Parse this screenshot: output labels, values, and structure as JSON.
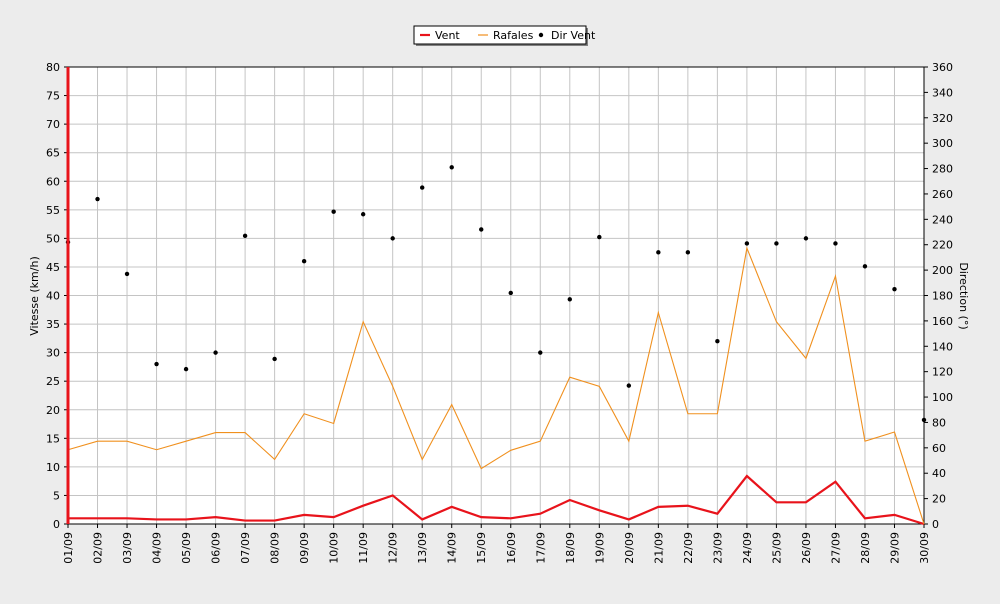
{
  "chart_data": {
    "type": "line",
    "title": "",
    "categories": [
      "01/09",
      "02/09",
      "03/09",
      "04/09",
      "05/09",
      "06/09",
      "07/09",
      "08/09",
      "09/09",
      "10/09",
      "11/09",
      "12/09",
      "13/09",
      "14/09",
      "15/09",
      "16/09",
      "17/09",
      "18/09",
      "19/09",
      "20/09",
      "21/09",
      "22/09",
      "23/09",
      "24/09",
      "25/09",
      "26/09",
      "27/09",
      "28/09",
      "29/09",
      "30/09"
    ],
    "y_left": {
      "label": "Vitesse (km/h)",
      "min": 0,
      "max": 80,
      "step": 5
    },
    "y_right": {
      "label": "Direction (°)",
      "min": 0,
      "max": 360,
      "step": 20
    },
    "grid": true,
    "legend_position": "top-center",
    "series": [
      {
        "name": "Vent",
        "axis": "left",
        "kind": "line",
        "color": "#e8131b",
        "values": [
          1.0,
          1.0,
          1.0,
          0.8,
          0.8,
          1.2,
          0.6,
          0.6,
          1.6,
          1.2,
          3.2,
          5.0,
          0.8,
          3.0,
          1.2,
          1.0,
          1.8,
          4.2,
          2.4,
          0.8,
          3.0,
          3.2,
          1.8,
          8.4,
          3.8,
          3.8,
          7.4,
          1.0,
          1.6,
          0.0
        ]
      },
      {
        "name": "Rafales",
        "axis": "left",
        "kind": "line",
        "color": "#f0901e",
        "values": [
          13.0,
          14.5,
          14.5,
          13.0,
          14.5,
          16.0,
          16.0,
          11.3,
          19.3,
          17.6,
          35.4,
          24.1,
          11.3,
          20.9,
          9.7,
          12.9,
          14.5,
          25.7,
          24.1,
          14.5,
          37.0,
          19.3,
          19.3,
          48.3,
          35.4,
          29.0,
          43.4,
          14.5,
          16.1,
          0.0
        ]
      },
      {
        "name": "Dir Vent",
        "axis": "right",
        "kind": "scatter",
        "color": "#000000",
        "values": [
          222,
          256,
          197,
          126,
          122,
          135,
          227,
          130,
          207,
          246,
          244,
          225,
          265,
          281,
          232,
          182,
          135,
          177,
          226,
          109,
          214,
          214,
          144,
          221,
          221,
          225,
          221,
          203,
          185,
          82
        ]
      }
    ]
  }
}
